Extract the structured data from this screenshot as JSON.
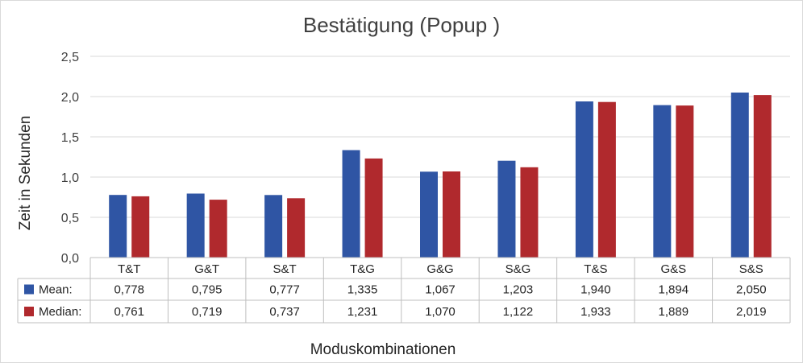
{
  "chart_data": {
    "type": "bar",
    "title": "Bestätigung (Popup )",
    "xlabel": "Moduskombinationen",
    "ylabel": "Zeit in Sekunden",
    "ylim": [
      0,
      2.5
    ],
    "yticks": [
      "0,0",
      "0,5",
      "1,0",
      "1,5",
      "2,0",
      "2,5"
    ],
    "grid": true,
    "legend": "data-table",
    "categories": [
      "T&T",
      "G&T",
      "S&T",
      "T&G",
      "G&G",
      "S&G",
      "T&S",
      "G&S",
      "S&S"
    ],
    "series": [
      {
        "name": "Mean:",
        "color": "#2f55a4",
        "values": [
          0.778,
          0.795,
          0.777,
          1.335,
          1.067,
          1.203,
          1.94,
          1.894,
          2.05
        ],
        "labels": [
          "0,778",
          "0,795",
          "0,777",
          "1,335",
          "1,067",
          "1,203",
          "1,940",
          "1,894",
          "2,050"
        ]
      },
      {
        "name": "Median:",
        "color": "#b0292d",
        "values": [
          0.761,
          0.719,
          0.737,
          1.231,
          1.07,
          1.122,
          1.933,
          1.889,
          2.019
        ],
        "labels": [
          "0,761",
          "0,719",
          "0,737",
          "1,231",
          "1,070",
          "1,122",
          "1,933",
          "1,889",
          "2,019"
        ]
      }
    ]
  }
}
